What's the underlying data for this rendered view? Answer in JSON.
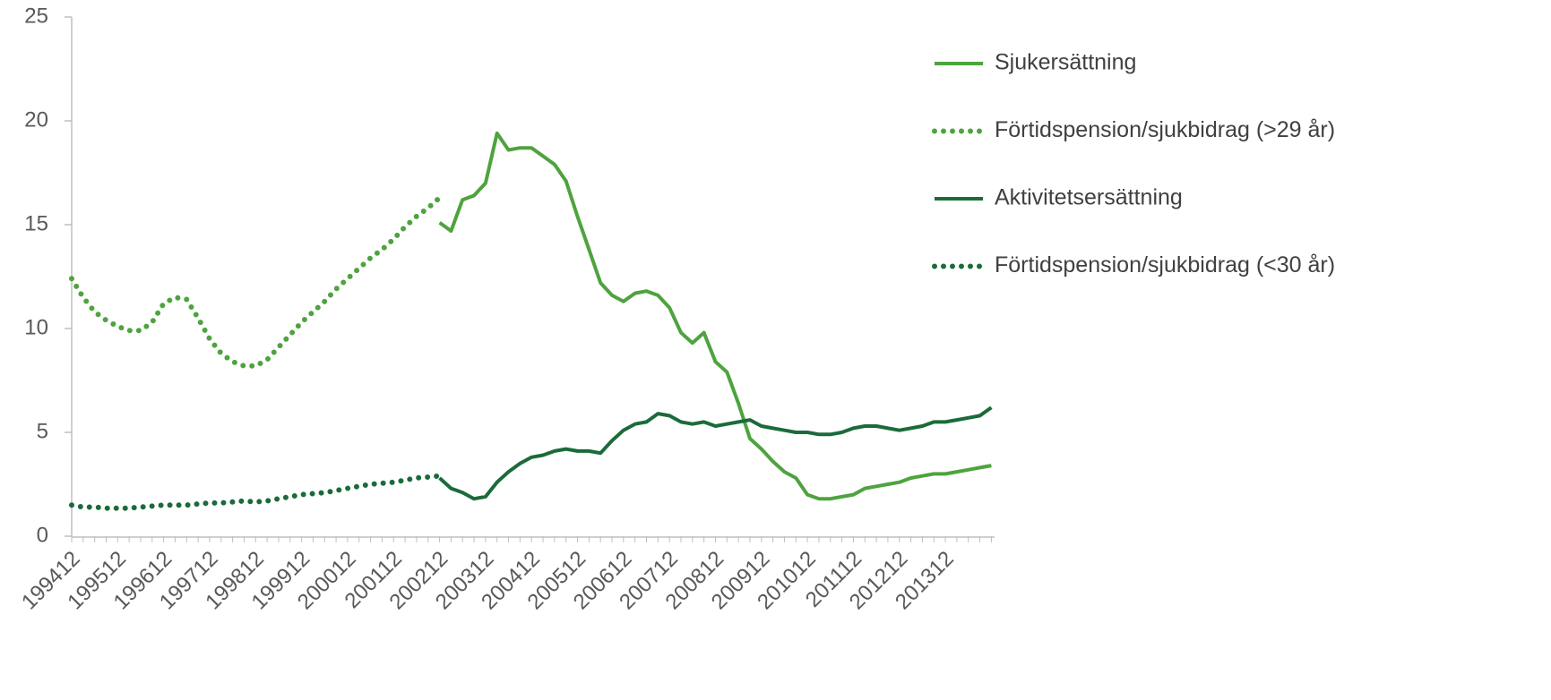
{
  "chart_data": {
    "type": "line",
    "categories": [
      "199412",
      null,
      null,
      null,
      "199512",
      null,
      null,
      null,
      "199612",
      null,
      null,
      null,
      "199712",
      null,
      null,
      null,
      "199812",
      null,
      null,
      null,
      "199912",
      null,
      null,
      null,
      "200012",
      null,
      null,
      null,
      "200112",
      null,
      null,
      null,
      "200212",
      null,
      null,
      null,
      "200312",
      null,
      null,
      null,
      "200412",
      null,
      null,
      null,
      "200512",
      null,
      null,
      null,
      "200612",
      null,
      null,
      null,
      "200712",
      null,
      null,
      null,
      "200812",
      null,
      null,
      null,
      "200912",
      null,
      null,
      null,
      "201012",
      null,
      null,
      null,
      "201112",
      null,
      null,
      null,
      "201212",
      null,
      null,
      null,
      "201312",
      null,
      null,
      null,
      null
    ],
    "series": [
      {
        "name": "Sjukersättning",
        "color": "#4ea33f",
        "style": "solid",
        "values": [
          null,
          null,
          null,
          null,
          null,
          null,
          null,
          null,
          null,
          null,
          null,
          null,
          null,
          null,
          null,
          null,
          null,
          null,
          null,
          null,
          null,
          null,
          null,
          null,
          null,
          null,
          null,
          null,
          null,
          null,
          null,
          null,
          15.1,
          14.7,
          16.2,
          16.4,
          17.0,
          19.4,
          18.6,
          18.7,
          18.7,
          18.3,
          17.9,
          17.1,
          15.4,
          13.8,
          12.2,
          11.6,
          11.3,
          11.7,
          11.8,
          11.6,
          11.0,
          9.8,
          9.3,
          9.8,
          8.4,
          7.9,
          6.4,
          4.7,
          4.2,
          3.6,
          3.1,
          2.8,
          2.0,
          1.8,
          1.8,
          1.9,
          2.0,
          2.3,
          2.4,
          2.5,
          2.6,
          2.8,
          2.9,
          3.0,
          3.0,
          3.1,
          3.2,
          3.3,
          3.4
        ]
      },
      {
        "name": "Förtidspension/sjukbidrag (>29 år)",
        "color": "#4ea33f",
        "style": "dotted",
        "values": [
          12.4,
          11.5,
          10.8,
          10.4,
          10.1,
          9.9,
          9.9,
          10.3,
          11.2,
          11.5,
          11.4,
          10.5,
          9.5,
          8.8,
          8.4,
          8.2,
          8.2,
          8.5,
          9.1,
          9.7,
          10.3,
          10.8,
          11.3,
          11.9,
          12.4,
          12.9,
          13.4,
          13.8,
          14.3,
          14.9,
          15.4,
          15.8,
          16.3,
          null,
          null,
          null,
          null,
          null,
          null,
          null,
          null,
          null,
          null,
          null,
          null,
          null,
          null,
          null,
          null,
          null,
          null,
          null,
          null,
          null,
          null,
          null,
          null,
          null,
          null,
          null,
          null,
          null,
          null,
          null,
          null,
          null,
          null,
          null,
          null,
          null,
          null,
          null,
          null,
          null,
          null,
          null,
          null,
          null,
          null,
          null,
          null
        ]
      },
      {
        "name": "Aktivitetsersättning",
        "color": "#1b6b3a",
        "style": "solid",
        "values": [
          null,
          null,
          null,
          null,
          null,
          null,
          null,
          null,
          null,
          null,
          null,
          null,
          null,
          null,
          null,
          null,
          null,
          null,
          null,
          null,
          null,
          null,
          null,
          null,
          null,
          null,
          null,
          null,
          null,
          null,
          null,
          null,
          2.8,
          2.3,
          2.1,
          1.8,
          1.9,
          2.6,
          3.1,
          3.5,
          3.8,
          3.9,
          4.1,
          4.2,
          4.1,
          4.1,
          4.0,
          4.6,
          5.1,
          5.4,
          5.5,
          5.9,
          5.8,
          5.5,
          5.4,
          5.5,
          5.3,
          5.4,
          5.5,
          5.6,
          5.3,
          5.2,
          5.1,
          5.0,
          5.0,
          4.9,
          4.9,
          5.0,
          5.2,
          5.3,
          5.3,
          5.2,
          5.1,
          5.2,
          5.3,
          5.5,
          5.5,
          5.6,
          5.7,
          5.8,
          6.2
        ]
      },
      {
        "name": "Förtidspension/sjukbidrag (<30 år)",
        "color": "#1b6b3a",
        "style": "dotted",
        "values": [
          1.5,
          1.4,
          1.4,
          1.35,
          1.35,
          1.35,
          1.4,
          1.45,
          1.5,
          1.5,
          1.5,
          1.55,
          1.6,
          1.6,
          1.65,
          1.7,
          1.65,
          1.7,
          1.8,
          1.9,
          2.0,
          2.05,
          2.1,
          2.2,
          2.3,
          2.4,
          2.5,
          2.55,
          2.6,
          2.7,
          2.8,
          2.85,
          2.9,
          null,
          null,
          null,
          null,
          null,
          null,
          null,
          null,
          null,
          null,
          null,
          null,
          null,
          null,
          null,
          null,
          null,
          null,
          null,
          null,
          null,
          null,
          null,
          null,
          null,
          null,
          null,
          null,
          null,
          null,
          null,
          null,
          null,
          null,
          null,
          null,
          null,
          null,
          null,
          null,
          null,
          null,
          null,
          null,
          null,
          null,
          null,
          null
        ]
      }
    ],
    "ylim": [
      0,
      25
    ],
    "yticks": [
      0,
      5,
      10,
      15,
      20,
      25
    ],
    "grid": false,
    "legend": "right"
  }
}
